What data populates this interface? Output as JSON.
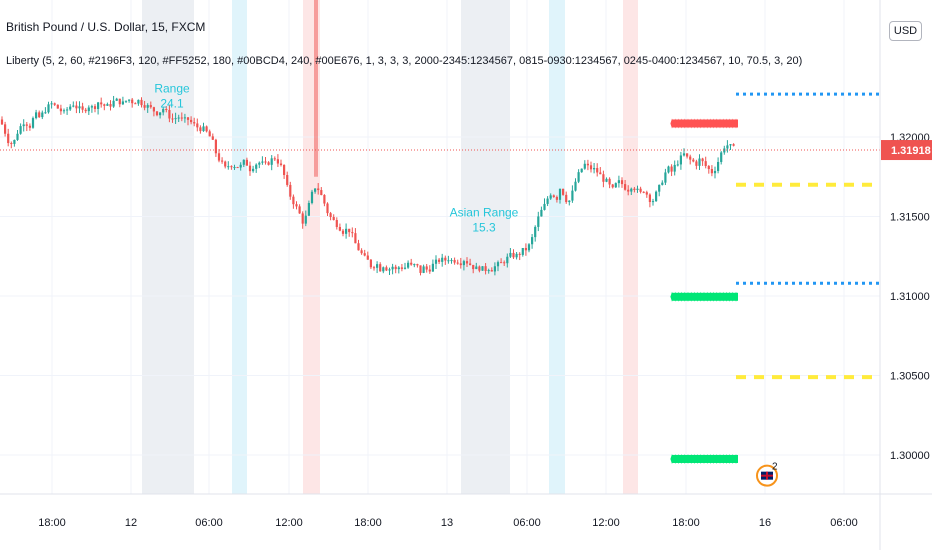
{
  "header": {
    "symbol": "British Pound / U.S. Dollar, 15, FXCM",
    "indicator": "Liberty (5, 2, 60, #2196F3, 120, #FF5252, 180, #00BCD4, 240, #00E676, 1, 3, 3, 3, 2000-2345:1234567, 0815-0930:1234567, 0245-0400:1234567, 10, 70.5, 3, 20)",
    "currency": "USD"
  },
  "chart_data": {
    "type": "candlestick",
    "title": "British Pound / U.S. Dollar, 15, FXCM",
    "x_tick_labels": [
      "18:00",
      "12",
      "06:00",
      "12:00",
      "18:00",
      "13",
      "06:00",
      "12:00",
      "18:00",
      "16",
      "06:00"
    ],
    "y_tick_labels": [
      "1.32000",
      "1.31500",
      "1.31000",
      "1.30500",
      "1.30000"
    ],
    "y_ticks": [
      1.32,
      1.315,
      1.31,
      1.305,
      1.3
    ],
    "ylim": [
      1.2955,
      1.3245
    ],
    "last_price": 1.31918,
    "last_price_label": "1.31918",
    "colors": {
      "up": "#26a69a",
      "down": "#ef5350",
      "asia_session": "#eceff3",
      "london_session": "#e0f4fb",
      "ny_session": "#fde6e6",
      "red_zone": "#ff5252",
      "green_zone": "#00e676",
      "blue_level": "#2196f3",
      "yellow_level": "#ffeb3b",
      "annotation": "#26c6da"
    },
    "close_path": [
      [
        0,
        1.3211
      ],
      [
        4,
        1.3205
      ],
      [
        8,
        1.3198
      ],
      [
        13,
        1.3195
      ],
      [
        18,
        1.3204
      ],
      [
        24,
        1.321
      ],
      [
        30,
        1.3207
      ],
      [
        35,
        1.3214
      ],
      [
        40,
        1.3212
      ],
      [
        45,
        1.3217
      ],
      [
        52,
        1.3221
      ],
      [
        58,
        1.3218
      ],
      [
        64,
        1.3215
      ],
      [
        68,
        1.3218
      ],
      [
        73,
        1.3221
      ],
      [
        78,
        1.3218
      ],
      [
        83,
        1.3216
      ],
      [
        88,
        1.322
      ],
      [
        93,
        1.3218
      ],
      [
        98,
        1.3222
      ],
      [
        103,
        1.322
      ],
      [
        108,
        1.3219
      ],
      [
        113,
        1.3222
      ],
      [
        118,
        1.3223
      ],
      [
        123,
        1.3221
      ],
      [
        128,
        1.3224
      ],
      [
        133,
        1.3222
      ],
      [
        138,
        1.3223
      ],
      [
        143,
        1.3221
      ],
      [
        148,
        1.3219
      ],
      [
        153,
        1.3217
      ],
      [
        158,
        1.3215
      ],
      [
        163,
        1.3218
      ],
      [
        168,
        1.3214
      ],
      [
        173,
        1.3211
      ],
      [
        178,
        1.3213
      ],
      [
        183,
        1.321
      ],
      [
        188,
        1.3211
      ],
      [
        193,
        1.3208
      ],
      [
        198,
        1.3206
      ],
      [
        203,
        1.3205
      ],
      [
        208,
        1.3202
      ],
      [
        212,
        1.3198
      ],
      [
        216,
        1.319
      ],
      [
        220,
        1.3185
      ],
      [
        225,
        1.318
      ],
      [
        230,
        1.3183
      ],
      [
        235,
        1.3182
      ],
      [
        240,
        1.3181
      ],
      [
        245,
        1.3185
      ],
      [
        250,
        1.318
      ],
      [
        255,
        1.3183
      ],
      [
        260,
        1.3184
      ],
      [
        265,
        1.3182
      ],
      [
        270,
        1.3185
      ],
      [
        275,
        1.3187
      ],
      [
        280,
        1.3183
      ],
      [
        284,
        1.3176
      ],
      [
        288,
        1.3166
      ],
      [
        292,
        1.3161
      ],
      [
        296,
        1.3156
      ],
      [
        300,
        1.3151
      ],
      [
        304,
        1.3145
      ],
      [
        308,
        1.3155
      ],
      [
        312,
        1.3164
      ],
      [
        316,
        1.317
      ],
      [
        320,
        1.3165
      ],
      [
        324,
        1.3159
      ],
      [
        328,
        1.3152
      ],
      [
        332,
        1.3148
      ],
      [
        336,
        1.3146
      ],
      [
        340,
        1.3143
      ],
      [
        344,
        1.314
      ],
      [
        348,
        1.3143
      ],
      [
        352,
        1.3138
      ],
      [
        356,
        1.3132
      ],
      [
        360,
        1.3128
      ],
      [
        364,
        1.3124
      ],
      [
        368,
        1.3122
      ],
      [
        372,
        1.3118
      ],
      [
        376,
        1.3121
      ],
      [
        380,
        1.3117
      ],
      [
        384,
        1.312
      ],
      [
        388,
        1.3116
      ],
      [
        392,
        1.3119
      ],
      [
        396,
        1.3116
      ],
      [
        400,
        1.3119
      ],
      [
        404,
        1.3117
      ],
      [
        408,
        1.3121
      ],
      [
        412,
        1.3118
      ],
      [
        416,
        1.312
      ],
      [
        420,
        1.3115
      ],
      [
        424,
        1.3118
      ],
      [
        428,
        1.3116
      ],
      [
        432,
        1.3119
      ],
      [
        436,
        1.3121
      ],
      [
        440,
        1.3123
      ],
      [
        444,
        1.3122
      ],
      [
        448,
        1.3124
      ],
      [
        452,
        1.3122
      ],
      [
        456,
        1.3123
      ],
      [
        460,
        1.3121
      ],
      [
        464,
        1.3123
      ],
      [
        468,
        1.3121
      ],
      [
        472,
        1.3119
      ],
      [
        476,
        1.3117
      ],
      [
        480,
        1.3118
      ],
      [
        484,
        1.3116
      ],
      [
        488,
        1.3118
      ],
      [
        492,
        1.3117
      ],
      [
        496,
        1.3119
      ],
      [
        500,
        1.312
      ],
      [
        504,
        1.3122
      ],
      [
        508,
        1.3124
      ],
      [
        512,
        1.3126
      ],
      [
        516,
        1.3125
      ],
      [
        520,
        1.3127
      ],
      [
        524,
        1.3129
      ],
      [
        528,
        1.313
      ],
      [
        532,
        1.3136
      ],
      [
        536,
        1.3145
      ],
      [
        540,
        1.3152
      ],
      [
        544,
        1.3156
      ],
      [
        548,
        1.3162
      ],
      [
        552,
        1.3166
      ],
      [
        556,
        1.316
      ],
      [
        560,
        1.3168
      ],
      [
        564,
        1.3164
      ],
      [
        568,
        1.3158
      ],
      [
        572,
        1.3164
      ],
      [
        576,
        1.3173
      ],
      [
        580,
        1.3178
      ],
      [
        584,
        1.3183
      ],
      [
        588,
        1.3181
      ],
      [
        592,
        1.318
      ],
      [
        596,
        1.3179
      ],
      [
        600,
        1.3176
      ],
      [
        604,
        1.3173
      ],
      [
        608,
        1.3171
      ],
      [
        612,
        1.3166
      ],
      [
        616,
        1.317
      ],
      [
        620,
        1.3172
      ],
      [
        624,
        1.3169
      ],
      [
        628,
        1.3167
      ],
      [
        632,
        1.317
      ],
      [
        636,
        1.3167
      ],
      [
        640,
        1.3164
      ],
      [
        644,
        1.3167
      ],
      [
        648,
        1.3163
      ],
      [
        652,
        1.3159
      ],
      [
        656,
        1.3164
      ],
      [
        660,
        1.3169
      ],
      [
        664,
        1.3176
      ],
      [
        668,
        1.318
      ],
      [
        672,
        1.3178
      ],
      [
        676,
        1.3183
      ],
      [
        680,
        1.3186
      ],
      [
        684,
        1.3189
      ],
      [
        688,
        1.3186
      ],
      [
        692,
        1.3185
      ],
      [
        696,
        1.3183
      ],
      [
        700,
        1.3186
      ],
      [
        704,
        1.3183
      ],
      [
        708,
        1.318
      ],
      [
        712,
        1.3178
      ],
      [
        716,
        1.3181
      ],
      [
        720,
        1.3188
      ],
      [
        724,
        1.3194
      ],
      [
        728,
        1.3195
      ],
      [
        732,
        1.3193
      ],
      [
        736,
        1.3192
      ]
    ],
    "sessions": [
      {
        "kind": "asia_session",
        "x0": 142,
        "x1": 194
      },
      {
        "kind": "london_session",
        "x0": 232,
        "x1": 247
      },
      {
        "kind": "ny_session",
        "x0": 303,
        "x1": 320
      },
      {
        "kind": "asia_session",
        "x0": 461,
        "x1": 510
      },
      {
        "kind": "london_session",
        "x0": 549,
        "x1": 565
      },
      {
        "kind": "ny_session",
        "x0": 623,
        "x1": 638
      }
    ],
    "spikes": [
      [
        316,
        1.3245,
        1.3175
      ]
    ],
    "zones": [
      {
        "kind": "red_zone",
        "x0": 672,
        "x1": 738,
        "y": 1.32085
      },
      {
        "kind": "green_zone",
        "x0": 672,
        "x1": 738,
        "y": 1.30995
      },
      {
        "kind": "green_zone",
        "x0": 672,
        "x1": 738,
        "y": 1.29975
      }
    ],
    "levels": [
      {
        "kind": "blue_level",
        "dash": "dot",
        "x0": 736,
        "x1": 880,
        "y": 1.3227
      },
      {
        "kind": "yellow_level",
        "dash": "dash",
        "x0": 736,
        "x1": 880,
        "y": 1.317
      },
      {
        "kind": "blue_level",
        "dash": "dot",
        "x0": 736,
        "x1": 880,
        "y": 1.3108
      },
      {
        "kind": "yellow_level",
        "dash": "dash",
        "x0": 736,
        "x1": 880,
        "y": 1.3049
      }
    ],
    "annotations": [
      {
        "line1": "Asian Range",
        "line2": "15.3",
        "x": 484,
        "y": 1.315
      },
      {
        "line1": "Range",
        "line2": "24.1",
        "x": 172,
        "y": 1.3228
      }
    ],
    "event_badge": {
      "x": 767,
      "y": 1.2987,
      "count": "2"
    }
  }
}
